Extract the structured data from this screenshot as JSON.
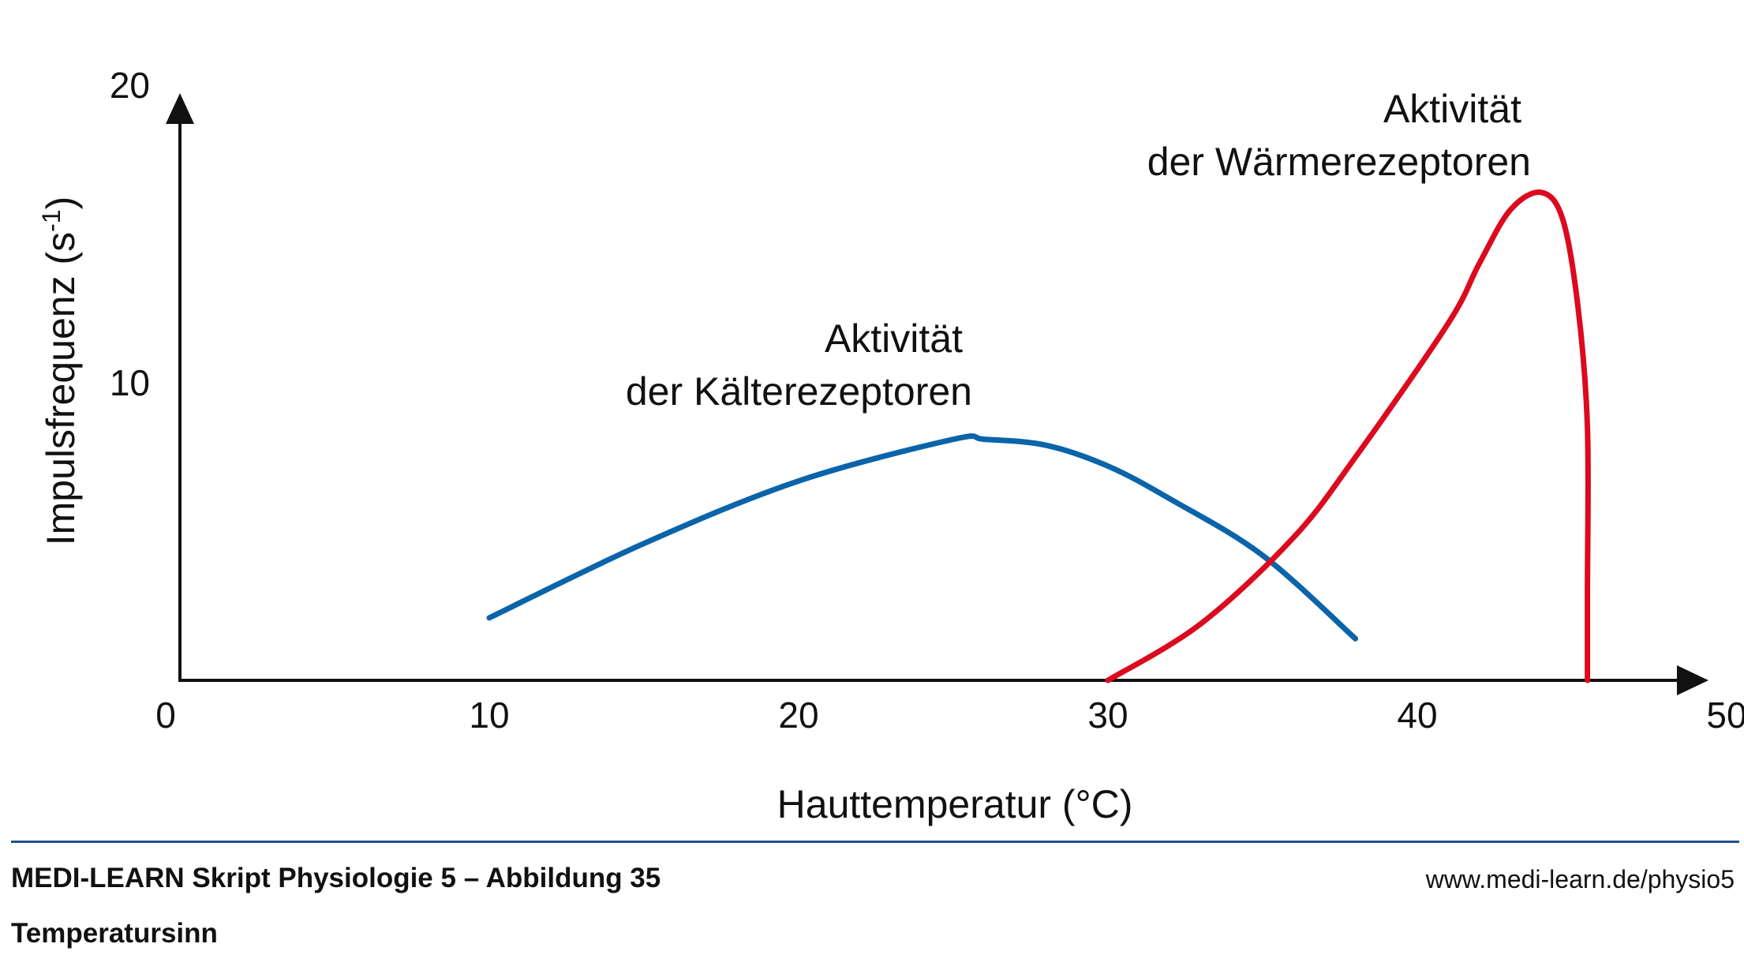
{
  "chart_data": {
    "type": "line",
    "xlabel": "Hauttemperatur (°C)",
    "ylabel": "Impulsfrequenz (s",
    "ylabel_sup": "-1",
    "ylabel_close": ")",
    "xlim": [
      0,
      50
    ],
    "ylim": [
      0,
      20
    ],
    "x_ticks": [
      "0",
      "10",
      "20",
      "30",
      "40",
      "50"
    ],
    "y_ticks": [
      "10",
      "20"
    ],
    "grid": false,
    "series": [
      {
        "label_lines": [
          "Aktivität",
          "der Kälterezeptoren"
        ],
        "color": "#0a64aa",
        "x": [
          10,
          15,
          20,
          25,
          26,
          28,
          30,
          32,
          35,
          38
        ],
        "y": [
          2.1,
          4.6,
          6.7,
          8.1,
          8.1,
          7.9,
          7.2,
          6.1,
          4.2,
          1.4
        ]
      },
      {
        "label_lines": [
          "Aktivität",
          "der Wärmerezeptoren"
        ],
        "color": "#dc0a1e",
        "x": [
          30,
          33,
          36,
          38,
          41,
          42,
          43,
          44,
          44.7,
          45.2,
          45.5,
          45.5,
          45.5
        ],
        "y": [
          0,
          1.9,
          4.8,
          7.5,
          12,
          14,
          15.8,
          16.4,
          15.5,
          12.5,
          8.5,
          3,
          0
        ]
      }
    ]
  },
  "footer": {
    "title": "MEDI-LEARN Skript Physiologie 5 – Abbildung 35",
    "subtitle": "Temperatursinn",
    "url": "www.medi-learn.de/physio5"
  }
}
